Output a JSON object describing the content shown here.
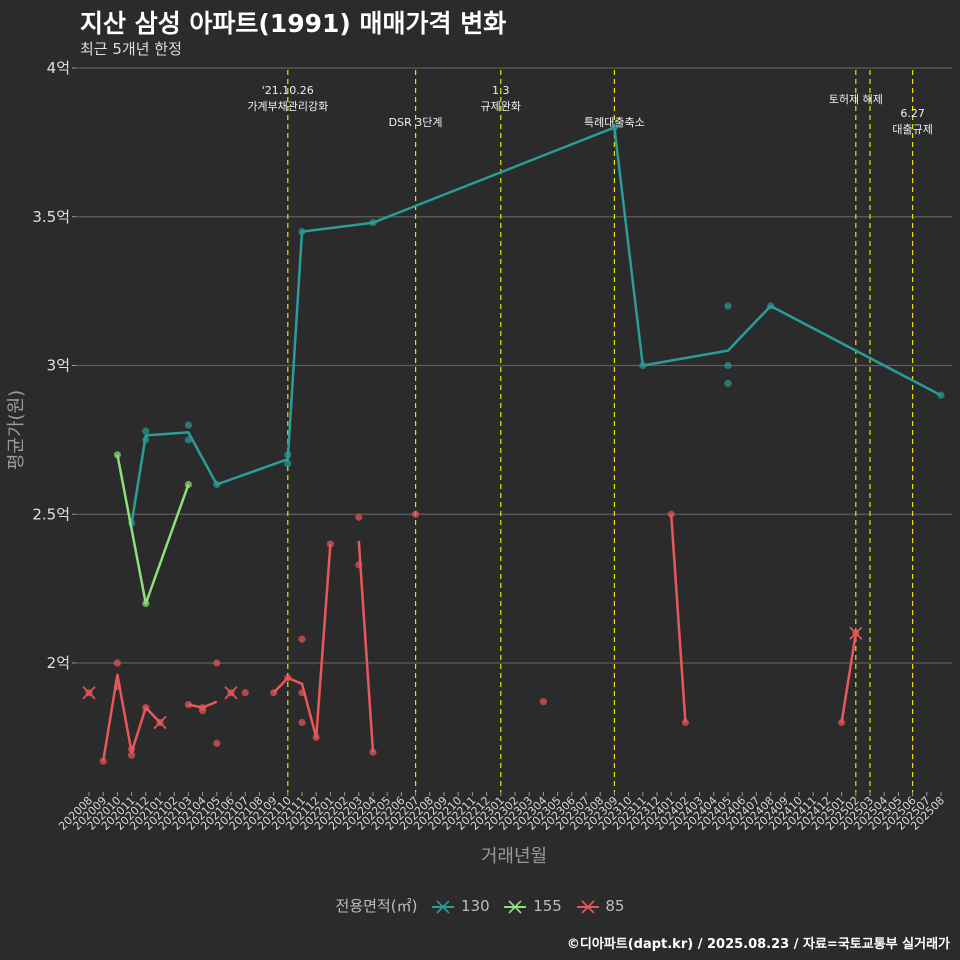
{
  "title": "지산 삼성 아파트(1991) 매매가격 변화",
  "subtitle": "최근 5개년 한정",
  "credit": "©디아파트(dapt.kr) / 2025.08.23 / 자료=국토교통부 실거래가",
  "legend": {
    "title": "전용면적(㎡)",
    "items": [
      {
        "label": "130",
        "color": "#2a9d99"
      },
      {
        "label": "155",
        "color": "#8ee07a"
      },
      {
        "label": "85",
        "color": "#e8585a"
      }
    ]
  },
  "chart_data": {
    "type": "line",
    "xlabel": "거래년월",
    "ylabel": "평균가(원)",
    "ylim": [
      1.55,
      4.0
    ],
    "y_ticks": [
      2,
      2.5,
      3,
      3.5,
      4
    ],
    "y_tick_labels": [
      "2억",
      "2.5억",
      "3억",
      "3.5억",
      "4억"
    ],
    "x_ticks": [
      "202008",
      "202009",
      "202010",
      "202011",
      "202012",
      "202101",
      "202102",
      "202103",
      "202104",
      "202105",
      "202106",
      "202107",
      "202108",
      "202109",
      "202110",
      "202111",
      "202112",
      "202201",
      "202202",
      "202203",
      "202204",
      "202205",
      "202206",
      "202207",
      "202208",
      "202209",
      "202210",
      "202211",
      "202212",
      "202301",
      "202302",
      "202303",
      "202304",
      "202305",
      "202306",
      "202307",
      "202308",
      "202309",
      "202310",
      "202311",
      "202312",
      "202401",
      "202402",
      "202403",
      "202404",
      "202405",
      "202406",
      "202407",
      "202408",
      "202409",
      "202410",
      "202411",
      "202412",
      "202501",
      "202502",
      "202503",
      "202504",
      "202505",
      "202506",
      "202507",
      "202508"
    ],
    "grid": true,
    "events": [
      {
        "x": "202110",
        "label": [
          "'21.10.26",
          "가계부채관리강화"
        ],
        "pos": "high"
      },
      {
        "x": "202207",
        "label": [
          "DSR 3단계"
        ],
        "pos": "low"
      },
      {
        "x": "202301",
        "label": [
          "1.3",
          "규제완화"
        ],
        "pos": "high"
      },
      {
        "x": "202309",
        "label": [
          "특례대출축소"
        ],
        "pos": "low"
      },
      {
        "x": "202502",
        "label": [
          "토허제 해제"
        ],
        "pos": "mid"
      },
      {
        "x": "202503",
        "label": [],
        "pos": "mid"
      },
      {
        "x": "202506",
        "label": [
          "6.27",
          "대출규제"
        ],
        "pos": "lowest"
      }
    ],
    "series": [
      {
        "name": "130",
        "color": "#2a9d99",
        "line": [
          [
            "202011",
            2.47
          ],
          [
            "202012",
            2.765
          ],
          [
            "202103",
            2.775
          ],
          [
            "202105",
            2.6
          ],
          [
            "202110",
            2.685
          ],
          [
            "202111",
            3.45
          ],
          [
            "202204",
            3.48
          ],
          [
            "202309",
            3.8
          ],
          [
            "202311",
            3.0
          ],
          [
            "202405",
            3.05
          ],
          [
            "202408",
            3.2
          ],
          [
            "202508",
            2.9
          ]
        ],
        "points": [
          [
            "202011",
            2.47
          ],
          [
            "202012",
            2.78
          ],
          [
            "202012",
            2.75
          ],
          [
            "202103",
            2.8
          ],
          [
            "202103",
            2.75
          ],
          [
            "202105",
            2.6
          ],
          [
            "202110",
            2.7
          ],
          [
            "202110",
            2.67
          ],
          [
            "202111",
            3.45
          ],
          [
            "202204",
            3.48
          ],
          [
            "202309",
            3.8
          ],
          [
            "202311",
            3.0
          ],
          [
            "202405",
            3.2
          ],
          [
            "202405",
            3.0
          ],
          [
            "202405",
            2.94
          ],
          [
            "202408",
            3.2
          ],
          [
            "202508",
            2.9
          ]
        ]
      },
      {
        "name": "155",
        "color": "#8ee07a",
        "line": [
          [
            "202010",
            2.7
          ],
          [
            "202012",
            2.2
          ],
          [
            "202103",
            2.6
          ]
        ],
        "points": [
          [
            "202010",
            2.7
          ],
          [
            "202012",
            2.2
          ],
          [
            "202103",
            2.6
          ]
        ]
      },
      {
        "name": "85",
        "color": "#e8585a",
        "segments": [
          [
            [
              "202008",
              1.9
            ]
          ],
          [
            [
              "202009",
              1.67
            ],
            [
              "202010",
              1.96
            ],
            [
              "202011",
              1.7
            ],
            [
              "202012",
              1.85
            ],
            [
              "202101",
              1.8
            ]
          ],
          [
            [
              "202103",
              1.86
            ],
            [
              "202104",
              1.85
            ],
            [
              "202105",
              1.87
            ]
          ],
          [
            [
              "202106",
              1.9
            ]
          ],
          [
            [
              "202109",
              1.9
            ],
            [
              "202110",
              1.95
            ],
            [
              "202111",
              1.93
            ],
            [
              "202112",
              1.75
            ],
            [
              "202201",
              2.4
            ]
          ],
          [
            [
              "202203",
              2.41
            ],
            [
              "202204",
              1.7
            ]
          ],
          [
            [
              "202207",
              2.5
            ]
          ],
          [
            [
              "202304",
              1.87
            ]
          ],
          [
            [
              "202401",
              2.5
            ],
            [
              "202402",
              1.8
            ]
          ],
          [
            [
              "202501",
              1.8
            ],
            [
              "202502",
              2.1
            ]
          ]
        ],
        "points": [
          [
            "202008",
            1.9
          ],
          [
            "202009",
            1.67
          ],
          [
            "202010",
            2.0
          ],
          [
            "202010",
            1.92
          ],
          [
            "202011",
            1.71
          ],
          [
            "202011",
            1.69
          ],
          [
            "202012",
            1.85
          ],
          [
            "202101",
            1.8
          ],
          [
            "202103",
            1.86
          ],
          [
            "202104",
            1.85
          ],
          [
            "202104",
            1.84
          ],
          [
            "202105",
            2.0
          ],
          [
            "202105",
            1.73
          ],
          [
            "202106",
            1.9
          ],
          [
            "202107",
            1.9
          ],
          [
            "202109",
            1.9
          ],
          [
            "202110",
            1.95
          ],
          [
            "202111",
            2.08
          ],
          [
            "202111",
            1.9
          ],
          [
            "202111",
            1.8
          ],
          [
            "202112",
            1.75
          ],
          [
            "202201",
            2.4
          ],
          [
            "202203",
            2.49
          ],
          [
            "202203",
            2.33
          ],
          [
            "202204",
            1.7
          ],
          [
            "202207",
            2.5
          ],
          [
            "202304",
            1.87
          ],
          [
            "202401",
            2.5
          ],
          [
            "202402",
            1.8
          ],
          [
            "202501",
            1.8
          ],
          [
            "202502",
            2.1
          ]
        ],
        "crosses": [
          [
            "202008",
            1.9
          ],
          [
            "202101",
            1.8
          ],
          [
            "202106",
            1.9
          ],
          [
            "202502",
            2.1
          ]
        ]
      }
    ]
  }
}
